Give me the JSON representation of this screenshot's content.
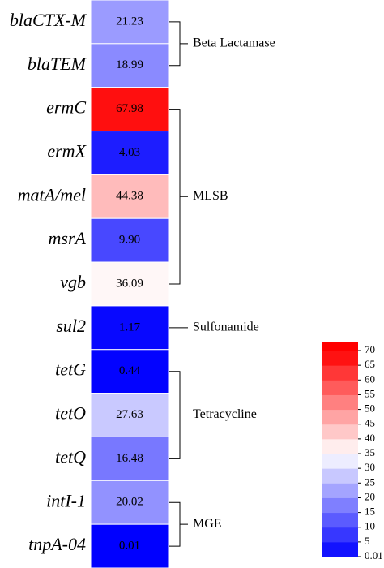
{
  "chart_data": {
    "type": "heatmap",
    "categories": [
      "blaCTX-M",
      "blaTEM",
      "ermC",
      "ermX",
      "matA/mel",
      "msrA",
      "vgb",
      "sul2",
      "tetG",
      "tetO",
      "tetQ",
      "intI-1",
      "tnpA-04"
    ],
    "values": [
      21.23,
      18.99,
      67.98,
      4.03,
      44.38,
      9.9,
      36.09,
      1.17,
      0.44,
      27.63,
      16.48,
      20.02,
      0.01
    ],
    "value_labels": [
      "21.23",
      "18.99",
      "67.98",
      "4.03",
      "44.38",
      "9.90",
      "36.09",
      "1.17",
      "0.44",
      "27.63",
      "16.48",
      "20.02",
      "0.01"
    ],
    "groups": [
      {
        "name": "Beta Lactamase",
        "count": 2
      },
      {
        "name": "MLSB",
        "count": 5
      },
      {
        "name": "Sulfonamide",
        "count": 1
      },
      {
        "name": "Tetracycline",
        "count": 3
      },
      {
        "name": "MGE",
        "count": 2
      }
    ],
    "colormap": [
      "#0000ff",
      "#ffffff",
      "#ff0000"
    ],
    "clim": [
      0.01,
      70
    ],
    "colorbar_ticks": [
      0.01,
      5,
      10,
      15,
      20,
      25,
      30,
      35,
      40,
      45,
      50,
      55,
      60,
      65,
      70
    ]
  }
}
